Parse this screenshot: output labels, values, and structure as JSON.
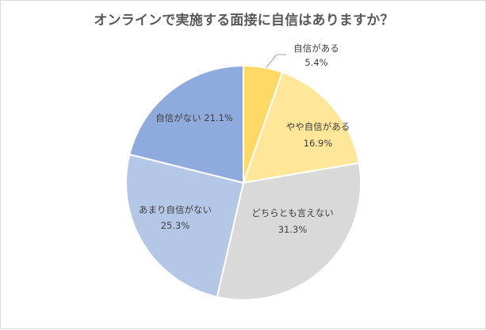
{
  "chart_data": {
    "type": "pie",
    "title": "オンラインで実施する面接に自信はありますか？",
    "slices": [
      {
        "label": "自信がある",
        "value": 5.4,
        "value_text": "5.4%",
        "color": "#ffd966"
      },
      {
        "label": "やや自信がある",
        "value": 16.9,
        "value_text": "16.9%",
        "color": "#ffe699"
      },
      {
        "label": "どちらとも言えない",
        "value": 31.3,
        "value_text": "31.3%",
        "color": "#d9d9d9"
      },
      {
        "label": "あまり自信がない",
        "value": 25.3,
        "value_text": "25.3%",
        "color": "#b4c7e7"
      },
      {
        "label": "自信がない",
        "value": 21.1,
        "value_text": "21.1%",
        "color": "#8faadc"
      }
    ],
    "start_angle_deg": 0,
    "direction": "clockwise",
    "legend": "none"
  }
}
